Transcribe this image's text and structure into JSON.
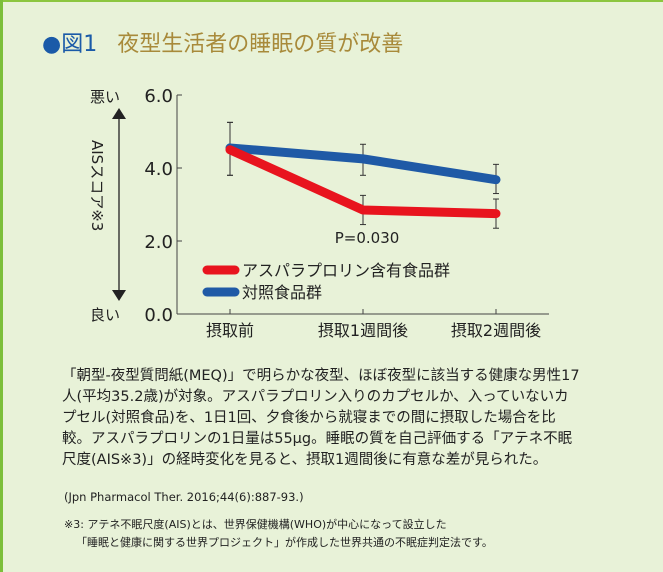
{
  "header": {
    "figure_label": "●図1",
    "title": "夜型生活者の睡眠の質が改善"
  },
  "chart_data": {
    "type": "line",
    "title": "夜型生活者の睡眠の質が改善",
    "categories": [
      "摂取前",
      "摂取1週間後",
      "摂取2週間後"
    ],
    "ylabel": "AISスコア※3",
    "ylabel_top": "悪い",
    "ylabel_bottom": "良い",
    "ylim": [
      0,
      6
    ],
    "yticks": [
      "6.0",
      "4.0",
      "2.0",
      "0.0"
    ],
    "ytick_values": [
      6,
      4,
      2,
      0
    ],
    "grid": false,
    "legend_position": "bottom-center",
    "annotation": "P=0.030",
    "series": [
      {
        "name": "アスパラプロリン含有食品群",
        "color": "#e8141e",
        "values": [
          4.5,
          2.85,
          2.75
        ],
        "err_low": [
          3.8,
          2.45,
          2.35
        ],
        "err_high": [
          5.25,
          3.25,
          3.15
        ]
      },
      {
        "name": "対照食品群",
        "color": "#1f5aa6",
        "values": [
          4.55,
          4.25,
          3.68
        ],
        "err_low": [
          3.8,
          3.8,
          3.3
        ],
        "err_high": [
          5.25,
          4.65,
          4.1
        ]
      }
    ]
  },
  "description": "「朝型-夜型質問紙(MEQ)」で明らかな夜型、ほぼ夜型に該当する健康な男性17人(平均35.2歳)が対象。アスパラプロリン入りのカプセルか、入っていないカプセル(対照食品)を、1日1回、夕食後から就寝までの間に摂取した場合を比較。アスパラプロリンの1日量は55μg。睡眠の質を自己評価する「アテネ不眠尺度(AIS※3)」の経時変化を見ると、摂取1週間後に有意な差が見られた。",
  "reference": "(Jpn Pharmacol Ther. 2016;44(6):887-93.)",
  "footnote": {
    "line1": "※3: アテネ不眠尺度(AIS)とは、世界保健機構(WHO)が中心になって設立した",
    "line2": "「睡眠と健康に関する世界プロジェクト」が作成した世界共通の不眠症判定法です。"
  }
}
